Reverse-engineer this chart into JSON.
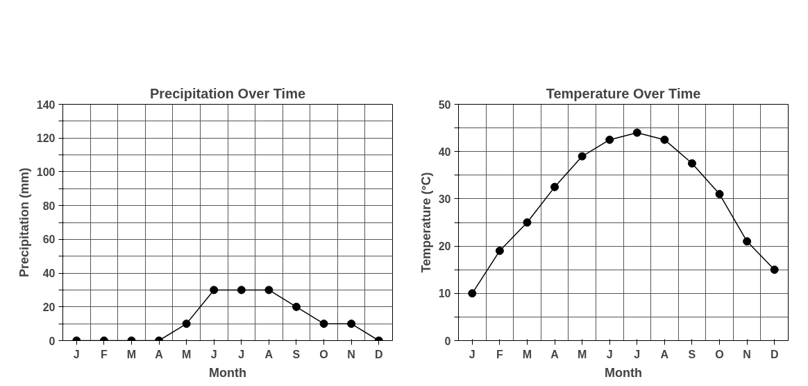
{
  "chart_data": [
    {
      "type": "line",
      "title": "Precipitation Over Time",
      "xlabel": "Month",
      "ylabel": "Precipitation (mm)",
      "categories": [
        "J",
        "F",
        "M",
        "A",
        "M",
        "J",
        "J",
        "A",
        "S",
        "O",
        "N",
        "D"
      ],
      "series": [
        {
          "color": "#000000",
          "values": [
            0,
            0,
            0,
            0,
            10,
            30,
            30,
            30,
            20,
            10,
            10,
            0
          ]
        }
      ],
      "ylim": [
        0,
        140
      ],
      "yticks": [
        0,
        {
          "value": 10,
          "label": null
        },
        20,
        {
          "value": 30,
          "label": null
        },
        40,
        {
          "value": 50,
          "label": null
        },
        60,
        {
          "value": 70,
          "label": null
        },
        80,
        {
          "value": 90,
          "label": null
        },
        100,
        {
          "value": 110,
          "label": null
        },
        120,
        {
          "value": 130,
          "label": null
        },
        140
      ],
      "grid": true,
      "marker": "circle",
      "line_style": "solid"
    },
    {
      "type": "line",
      "title": "Temperature Over Time",
      "xlabel": "Month",
      "ylabel": "Temperature (°C)",
      "categories": [
        "J",
        "F",
        "M",
        "A",
        "M",
        "J",
        "J",
        "A",
        "S",
        "O",
        "N",
        "D"
      ],
      "series": [
        {
          "color": "#000000",
          "values": [
            10,
            19,
            25,
            32.5,
            39,
            42.5,
            44,
            42.5,
            37.5,
            31,
            21,
            15
          ]
        }
      ],
      "ylim": [
        0,
        50
      ],
      "yticks": [
        0,
        {
          "value": 5,
          "label": null
        },
        10,
        {
          "value": 15,
          "label": null
        },
        20,
        {
          "value": 25,
          "label": null
        },
        30,
        {
          "value": 35,
          "label": null
        },
        40,
        {
          "value": 45,
          "label": null
        },
        50
      ],
      "grid": true,
      "marker": "circle",
      "line_style": "solid"
    }
  ]
}
